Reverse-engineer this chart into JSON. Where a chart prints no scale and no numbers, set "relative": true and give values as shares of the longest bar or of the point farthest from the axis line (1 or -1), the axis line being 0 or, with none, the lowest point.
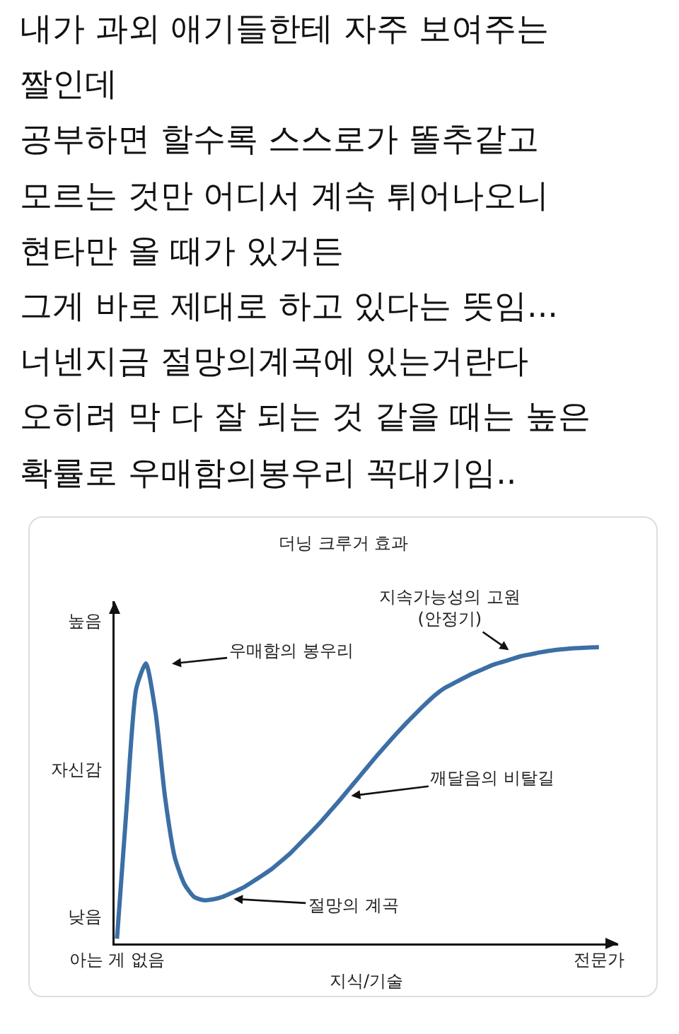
{
  "chart_data": {
    "type": "line",
    "relative": true,
    "title": "내가 과외 애기들한테 자주 보여주는\n짤인데\n공부하면 할수록 스스로가 똘추같고\n모르는 것만 어디서 계속 튀어나오니\n현타만 올 때가 있거든\n그게 바로 제대로 하고 있다는 뜻임...\n너넨지금 절망의계곡에 있는거란다\n오히려 막 다 잘 되는 것 같을 때는 높은\n확률로 우매함의봉우리 꼭대기임..",
    "subtitle": "더닝 크루거 효과",
    "xlabel": "지식/기술",
    "ylabel": "자신감",
    "categories": [
      "아는 게 없음",
      null,
      null,
      null,
      null,
      null,
      null,
      null,
      null,
      null,
      null,
      null,
      null,
      null,
      null,
      null,
      null,
      null,
      null,
      null,
      null,
      null,
      null,
      null,
      null,
      null,
      null,
      null,
      null,
      null,
      null,
      null,
      null,
      null,
      null,
      null,
      null,
      null,
      null,
      null,
      null,
      null,
      null,
      null,
      null,
      null,
      null,
      null,
      null,
      null,
      "전문가"
    ],
    "series": [
      {
        "color": "#3b6fa5",
        "values": [
          0.016,
          0.46,
          0.86,
          0.945,
          0.78,
          0.49,
          0.29,
          0.2,
          0.157,
          0.146,
          0.149,
          0.158,
          0.172,
          0.187,
          0.207,
          0.228,
          0.25,
          0.277,
          0.305,
          0.338,
          0.371,
          0.405,
          0.442,
          0.479,
          0.518,
          0.557,
          0.596,
          0.635,
          0.672,
          0.708,
          0.743,
          0.776,
          0.808,
          0.838,
          0.862,
          0.879,
          0.896,
          0.912,
          0.926,
          0.94,
          0.95,
          0.96,
          0.97,
          0.976,
          0.983,
          0.988,
          0.992,
          0.995,
          0.997,
          0.999,
          1.0
        ]
      }
    ],
    "annotations": [
      "높음",
      "낮음",
      "우매함의 봉우리",
      "절망의 계곡",
      "깨달음의 비탈길",
      "지속가능성의 고원\n(안정기)"
    ]
  }
}
